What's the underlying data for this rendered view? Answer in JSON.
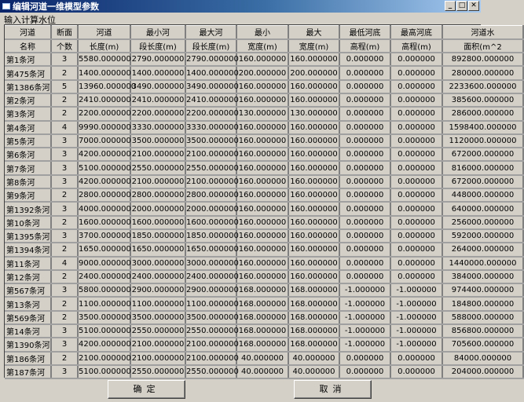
{
  "window": {
    "title": "编辑河道一维模型参数",
    "min": "_",
    "max": "□",
    "close": "✕"
  },
  "subtitle": "输入计算水位",
  "headers": [
    [
      "河道",
      "断面",
      "河道",
      "最小河",
      "最大河",
      "最小",
      "最大",
      "最低河底",
      "最高河底",
      "河道水"
    ],
    [
      "名称",
      "个数",
      "长度(m)",
      "段长度(m)",
      "段长度(m)",
      "宽度(m)",
      "宽度(m)",
      "高程(m)",
      "高程(m)",
      "面积(m^2"
    ]
  ],
  "rows": [
    [
      "第1条河",
      "3",
      "5580.000000",
      "2790.000000",
      "2790.000000",
      "160.000000",
      "160.000000",
      "0.000000",
      "0.000000",
      "892800.000000"
    ],
    [
      "第475条河",
      "2",
      "1400.000000",
      "1400.000000",
      "1400.000000",
      "200.000000",
      "200.000000",
      "0.000000",
      "0.000000",
      "280000.000000"
    ],
    [
      "第1386条河",
      "5",
      "13960.000000",
      "3490.000000",
      "3490.000000",
      "160.000000",
      "160.000000",
      "0.000000",
      "0.000000",
      "2233600.000000"
    ],
    [
      "第2条河",
      "2",
      "2410.000000",
      "2410.000000",
      "2410.000000",
      "160.000000",
      "160.000000",
      "0.000000",
      "0.000000",
      "385600.000000"
    ],
    [
      "第3条河",
      "2",
      "2200.000000",
      "2200.000000",
      "2200.000000",
      "130.000000",
      "130.000000",
      "0.000000",
      "0.000000",
      "286000.000000"
    ],
    [
      "第4条河",
      "4",
      "9990.000000",
      "3330.000000",
      "3330.000000",
      "160.000000",
      "160.000000",
      "0.000000",
      "0.000000",
      "1598400.000000"
    ],
    [
      "第5条河",
      "3",
      "7000.000000",
      "3500.000000",
      "3500.000000",
      "160.000000",
      "160.000000",
      "0.000000",
      "0.000000",
      "1120000.000000"
    ],
    [
      "第6条河",
      "3",
      "4200.000000",
      "2100.000000",
      "2100.000000",
      "160.000000",
      "160.000000",
      "0.000000",
      "0.000000",
      "672000.000000"
    ],
    [
      "第7条河",
      "3",
      "5100.000000",
      "2550.000000",
      "2550.000000",
      "160.000000",
      "160.000000",
      "0.000000",
      "0.000000",
      "816000.000000"
    ],
    [
      "第8条河",
      "3",
      "4200.000000",
      "2100.000000",
      "2100.000000",
      "160.000000",
      "160.000000",
      "0.000000",
      "0.000000",
      "672000.000000"
    ],
    [
      "第9条河",
      "2",
      "2800.000000",
      "2800.000000",
      "2800.000000",
      "160.000000",
      "160.000000",
      "0.000000",
      "0.000000",
      "448000.000000"
    ],
    [
      "第1392条河",
      "3",
      "4000.000000",
      "2000.000000",
      "2000.000000",
      "160.000000",
      "160.000000",
      "0.000000",
      "0.000000",
      "640000.000000"
    ],
    [
      "第10条河",
      "2",
      "1600.000000",
      "1600.000000",
      "1600.000000",
      "160.000000",
      "160.000000",
      "0.000000",
      "0.000000",
      "256000.000000"
    ],
    [
      "第1395条河",
      "3",
      "3700.000000",
      "1850.000000",
      "1850.000000",
      "160.000000",
      "160.000000",
      "0.000000",
      "0.000000",
      "592000.000000"
    ],
    [
      "第1394条河",
      "2",
      "1650.000000",
      "1650.000000",
      "1650.000000",
      "160.000000",
      "160.000000",
      "0.000000",
      "0.000000",
      "264000.000000"
    ],
    [
      "第11条河",
      "4",
      "9000.000000",
      "3000.000000",
      "3000.000000",
      "160.000000",
      "160.000000",
      "0.000000",
      "0.000000",
      "1440000.000000"
    ],
    [
      "第12条河",
      "2",
      "2400.000000",
      "2400.000000",
      "2400.000000",
      "160.000000",
      "160.000000",
      "0.000000",
      "0.000000",
      "384000.000000"
    ],
    [
      "第567条河",
      "3",
      "5800.000000",
      "2900.000000",
      "2900.000000",
      "168.000000",
      "168.000000",
      "-1.000000",
      "-1.000000",
      "974400.000000"
    ],
    [
      "第13条河",
      "2",
      "1100.000000",
      "1100.000000",
      "1100.000000",
      "168.000000",
      "168.000000",
      "-1.000000",
      "-1.000000",
      "184800.000000"
    ],
    [
      "第569条河",
      "2",
      "3500.000000",
      "3500.000000",
      "3500.000000",
      "168.000000",
      "168.000000",
      "-1.000000",
      "-1.000000",
      "588000.000000"
    ],
    [
      "第14条河",
      "3",
      "5100.000000",
      "2550.000000",
      "2550.000000",
      "168.000000",
      "168.000000",
      "-1.000000",
      "-1.000000",
      "856800.000000"
    ],
    [
      "第1390条河",
      "3",
      "4200.000000",
      "2100.000000",
      "2100.000000",
      "168.000000",
      "168.000000",
      "-1.000000",
      "-1.000000",
      "705600.000000"
    ],
    [
      "第186条河",
      "2",
      "2100.000000",
      "2100.000000",
      "2100.000000",
      "40.000000",
      "40.000000",
      "0.000000",
      "0.000000",
      "84000.000000"
    ],
    [
      "第187条河",
      "3",
      "5100.000000",
      "2550.000000",
      "2550.000000",
      "40.000000",
      "40.000000",
      "0.000000",
      "0.000000",
      "204000.000000"
    ]
  ],
  "buttons": {
    "ok": "确定",
    "cancel": "取消"
  }
}
